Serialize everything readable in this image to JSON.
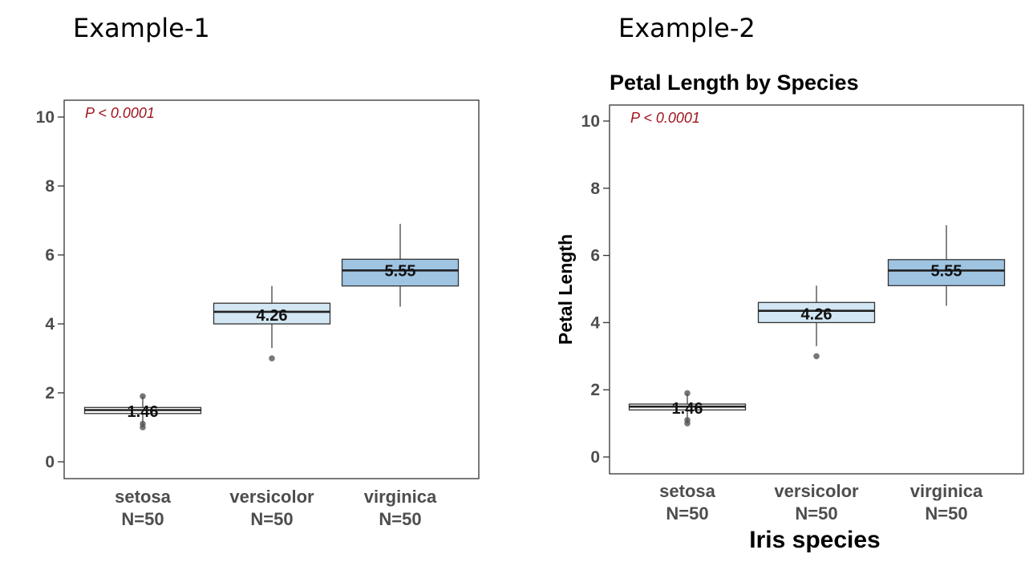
{
  "headings": [
    "Example-1",
    "Example-2"
  ],
  "chart_data": [
    {
      "type": "box",
      "title": "",
      "xlabel": "",
      "ylabel": "",
      "ylim": [
        0,
        10
      ],
      "yticks": [
        0,
        2,
        4,
        6,
        8,
        10
      ],
      "annotation": "P < 0.0001",
      "annotation_color": "#a0141e",
      "grid": false,
      "categories": [
        "setosa",
        "versicolor",
        "virginica"
      ],
      "n_labels": [
        "N=50",
        "N=50",
        "N=50"
      ],
      "boxes": [
        {
          "category": "setosa",
          "whisker_low": 1.0,
          "q1": 1.4,
          "median": 1.5,
          "q3": 1.575,
          "whisker_high": 1.9,
          "mean": 1.46,
          "mean_label": "1.46",
          "outliers": [
            1.0,
            1.1,
            1.9
          ],
          "fill": "#ffffff"
        },
        {
          "category": "versicolor",
          "whisker_low": 3.3,
          "q1": 4.0,
          "median": 4.35,
          "q3": 4.6,
          "whisker_high": 5.1,
          "mean": 4.26,
          "mean_label": "4.26",
          "outliers": [
            3.0
          ],
          "fill": "#d2e6f3"
        },
        {
          "category": "virginica",
          "whisker_low": 4.5,
          "q1": 5.1,
          "median": 5.55,
          "q3": 5.875,
          "whisker_high": 6.9,
          "mean": 5.55,
          "mean_label": "5.55",
          "outliers": [],
          "fill": "#9ec4e2"
        }
      ]
    },
    {
      "type": "box",
      "title": "Petal Length by Species",
      "xlabel": "Iris species",
      "ylabel": "Petal Length",
      "ylim": [
        0,
        10
      ],
      "yticks": [
        0,
        2,
        4,
        6,
        8,
        10
      ],
      "annotation": "P < 0.0001",
      "annotation_color": "#a0141e",
      "grid": false,
      "categories": [
        "setosa",
        "versicolor",
        "virginica"
      ],
      "n_labels": [
        "N=50",
        "N=50",
        "N=50"
      ],
      "boxes": [
        {
          "category": "setosa",
          "whisker_low": 1.0,
          "q1": 1.4,
          "median": 1.5,
          "q3": 1.575,
          "whisker_high": 1.9,
          "mean": 1.46,
          "mean_label": "1.46",
          "outliers": [
            1.0,
            1.1,
            1.9
          ],
          "fill": "#ffffff"
        },
        {
          "category": "versicolor",
          "whisker_low": 3.3,
          "q1": 4.0,
          "median": 4.35,
          "q3": 4.6,
          "whisker_high": 5.1,
          "mean": 4.26,
          "mean_label": "4.26",
          "outliers": [
            3.0
          ],
          "fill": "#d2e6f3"
        },
        {
          "category": "virginica",
          "whisker_low": 4.5,
          "q1": 5.1,
          "median": 5.55,
          "q3": 5.875,
          "whisker_high": 6.9,
          "mean": 5.55,
          "mean_label": "5.55",
          "outliers": [],
          "fill": "#9ec4e2"
        }
      ]
    }
  ]
}
